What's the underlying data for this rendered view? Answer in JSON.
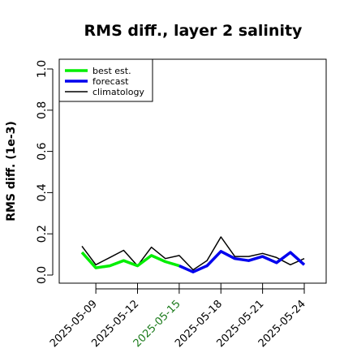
{
  "chart_data": {
    "type": "line",
    "title": "RMS diff., layer 2 salinity",
    "xlabel": "",
    "ylabel": "RMS diff. (1e-3)",
    "ylim": [
      0.0,
      1.0
    ],
    "yticks": [
      "0.0",
      "0.2",
      "0.4",
      "0.6",
      "0.8",
      "1.0"
    ],
    "xlim": [
      "2025-05-07",
      "2025-05-25"
    ],
    "xticks": [
      {
        "label": "2025-05-09",
        "date": "2025-05-09",
        "color": "#000000"
      },
      {
        "label": "2025-05-12",
        "date": "2025-05-12",
        "color": "#000000"
      },
      {
        "label": "2025-05-15",
        "date": "2025-05-15",
        "color": "#1a7a1a"
      },
      {
        "label": "2025-05-18",
        "date": "2025-05-18",
        "color": "#000000"
      },
      {
        "label": "2025-05-21",
        "date": "2025-05-21",
        "color": "#000000"
      },
      {
        "label": "2025-05-24",
        "date": "2025-05-24",
        "color": "#000000"
      }
    ],
    "legend_position": "top-left",
    "grid": false,
    "series": [
      {
        "name": "best est.",
        "color": "#00ee00",
        "width": 3.5,
        "x": [
          "2025-05-08",
          "2025-05-09",
          "2025-05-10",
          "2025-05-11",
          "2025-05-12",
          "2025-05-13",
          "2025-05-14",
          "2025-05-15"
        ],
        "values": [
          0.11,
          0.035,
          0.045,
          0.07,
          0.045,
          0.095,
          0.065,
          0.045
        ]
      },
      {
        "name": "forecast",
        "color": "#0000ee",
        "width": 3.5,
        "x": [
          "2025-05-15",
          "2025-05-16",
          "2025-05-17",
          "2025-05-18",
          "2025-05-19",
          "2025-05-20",
          "2025-05-21",
          "2025-05-22",
          "2025-05-23",
          "2025-05-24"
        ],
        "values": [
          0.045,
          0.015,
          0.045,
          0.115,
          0.08,
          0.07,
          0.09,
          0.06,
          0.11,
          0.05
        ]
      },
      {
        "name": "climatology",
        "color": "#000000",
        "width": 1.5,
        "x": [
          "2025-05-08",
          "2025-05-09",
          "2025-05-10",
          "2025-05-11",
          "2025-05-12",
          "2025-05-13",
          "2025-05-14",
          "2025-05-15",
          "2025-05-16",
          "2025-05-17",
          "2025-05-18",
          "2025-05-19",
          "2025-05-20",
          "2025-05-21",
          "2025-05-22",
          "2025-05-23",
          "2025-05-24"
        ],
        "values": [
          0.14,
          0.05,
          0.085,
          0.12,
          0.045,
          0.135,
          0.08,
          0.095,
          0.025,
          0.07,
          0.185,
          0.09,
          0.09,
          0.105,
          0.085,
          0.05,
          0.08
        ]
      }
    ]
  }
}
